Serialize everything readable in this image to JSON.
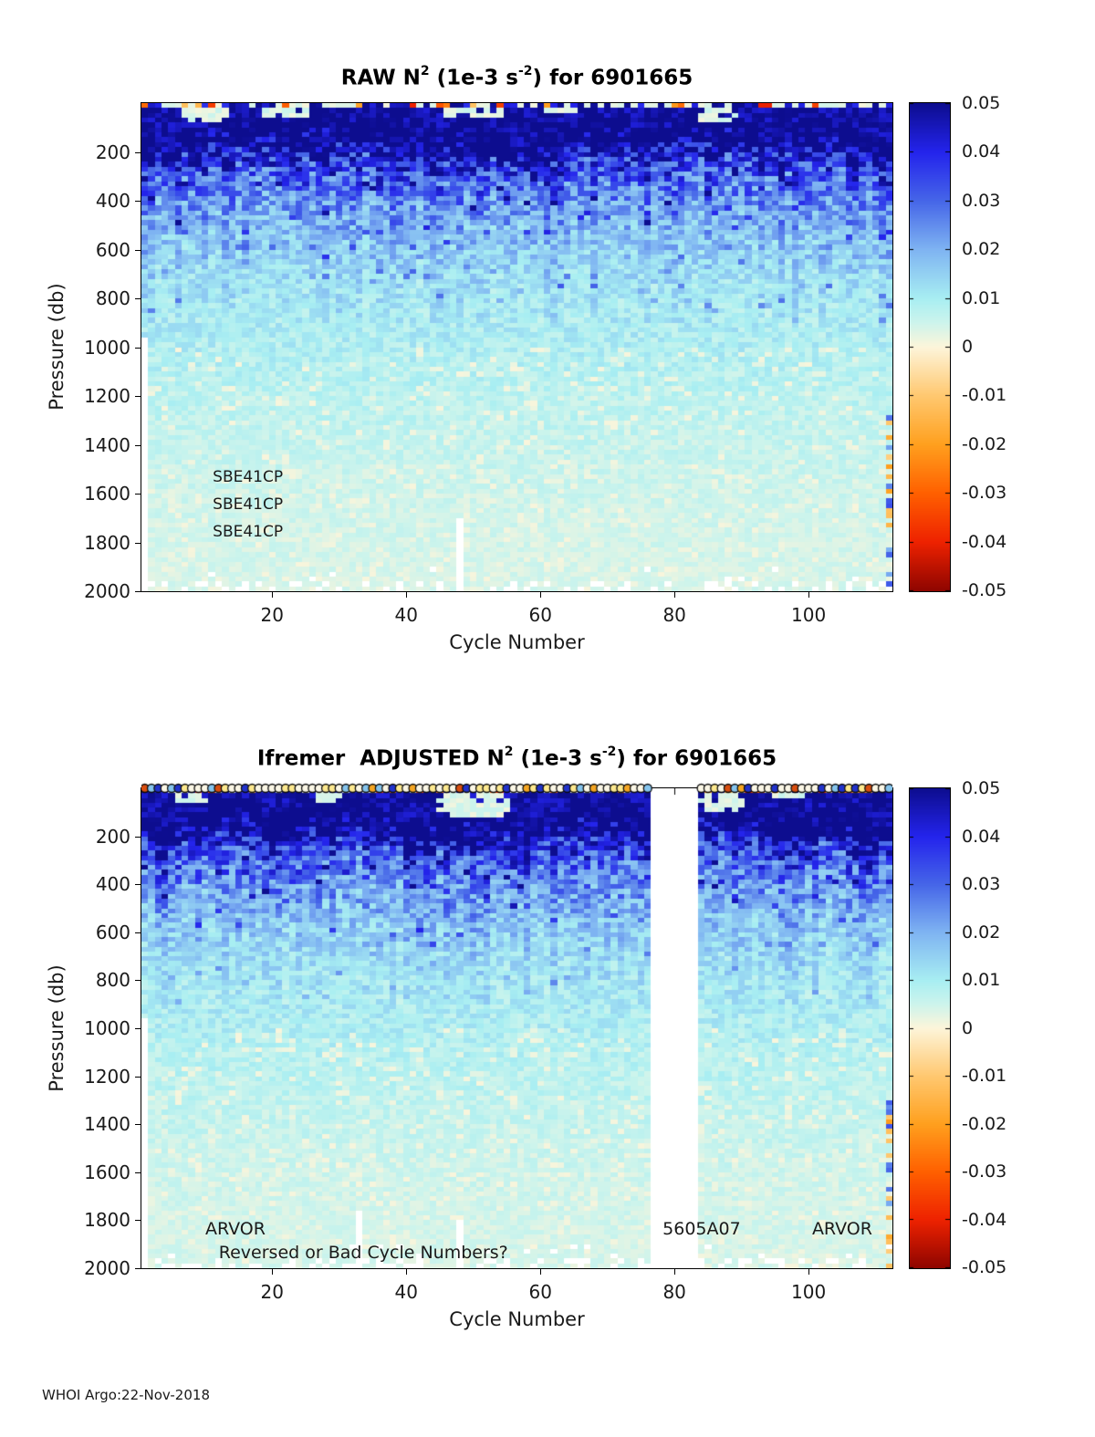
{
  "page": {
    "background": "#ffffff",
    "footer": "WHOI Argo:22-Nov-2018"
  },
  "colormap": {
    "min": -0.05,
    "max": 0.05,
    "stops": [
      [
        -0.05,
        "#8f0500"
      ],
      [
        -0.04,
        "#ee2200"
      ],
      [
        -0.03,
        "#ff6000"
      ],
      [
        -0.02,
        "#ffa01e"
      ],
      [
        -0.01,
        "#ffc870"
      ],
      [
        0.0,
        "#fdf5da"
      ],
      [
        0.005,
        "#cdf4ec"
      ],
      [
        0.01,
        "#a8eef2"
      ],
      [
        0.02,
        "#7fb4f2"
      ],
      [
        0.03,
        "#4666e8"
      ],
      [
        0.04,
        "#2424ec"
      ],
      [
        0.05,
        "#0d0d8f"
      ]
    ]
  },
  "chart_data": [
    {
      "type": "heatmap",
      "title_parts": {
        "t1": "RAW N",
        "sup1": "2",
        "t2": " (1e-3 s",
        "sup2": "-2",
        "t3": ") for 6901665"
      },
      "xlabel": "Cycle Number",
      "ylabel": "Pressure (db)",
      "x_range": [
        1,
        112
      ],
      "y_range": [
        0,
        2000
      ],
      "x_ticks": [
        20,
        40,
        60,
        80,
        100
      ],
      "y_ticks": [
        200,
        400,
        600,
        800,
        1000,
        1200,
        1400,
        1600,
        1800,
        2000
      ],
      "colorbar_ticks": [
        "0.05",
        "0.04",
        "0.03",
        "0.02",
        "0.01",
        "0",
        "-0.01",
        "-0.02",
        "-0.03",
        "-0.04",
        "-0.05"
      ],
      "annotations": [
        {
          "text": "SBE41CP",
          "fx": 0.095,
          "fy": 0.766
        },
        {
          "text": "SBE41CP",
          "fx": 0.095,
          "fy": 0.822
        },
        {
          "text": "SBE41CP",
          "fx": 0.095,
          "fy": 0.879
        }
      ],
      "profile_db_value": [
        [
          0,
          0.01
        ],
        [
          20,
          0.04
        ],
        [
          40,
          0.048
        ],
        [
          80,
          0.047
        ],
        [
          120,
          0.044
        ],
        [
          160,
          0.04
        ],
        [
          200,
          0.036
        ],
        [
          250,
          0.031
        ],
        [
          300,
          0.027
        ],
        [
          350,
          0.025
        ],
        [
          400,
          0.023
        ],
        [
          500,
          0.019
        ],
        [
          600,
          0.016
        ],
        [
          700,
          0.0135
        ],
        [
          800,
          0.0115
        ],
        [
          900,
          0.01
        ],
        [
          1000,
          0.009
        ],
        [
          1100,
          0.008
        ],
        [
          1200,
          0.0072
        ],
        [
          1400,
          0.006
        ],
        [
          1600,
          0.005
        ],
        [
          1800,
          0.0044
        ],
        [
          2000,
          0.004
        ]
      ],
      "pale_blobs": [
        {
          "c": 10,
          "d": 45,
          "rc": 4,
          "rd": 35
        },
        {
          "c": 22,
          "d": 35,
          "rc": 4,
          "rd": 25
        },
        {
          "c": 50,
          "d": 40,
          "rc": 5,
          "rd": 30
        },
        {
          "c": 63,
          "d": 30,
          "rc": 3,
          "rd": 20
        },
        {
          "c": 86,
          "d": 50,
          "rc": 4,
          "rd": 30
        }
      ],
      "features": {
        "gap_cycles": null,
        "marker_row": false,
        "left_column_missing_below_db": 950,
        "missing_columns": [
          [
            48,
            1700
          ]
        ],
        "right_edge_specks_below_db": 1250
      }
    },
    {
      "type": "heatmap",
      "title_parts": {
        "t1": "Ifremer  ADJUSTED N",
        "sup1": "2",
        "t2": " (1e-3 s",
        "sup2": "-2",
        "t3": ") for 6901665"
      },
      "xlabel": "Cycle Number",
      "ylabel": "Pressure (db)",
      "x_range": [
        1,
        112
      ],
      "y_range": [
        0,
        2000
      ],
      "x_ticks": [
        20,
        40,
        60,
        80,
        100
      ],
      "y_ticks": [
        200,
        400,
        600,
        800,
        1000,
        1200,
        1400,
        1600,
        1800,
        2000
      ],
      "colorbar_ticks": [
        "0.05",
        "0.04",
        "0.03",
        "0.02",
        "0.01",
        "0",
        "-0.01",
        "-0.02",
        "-0.03",
        "-0.04",
        "-0.05"
      ],
      "annotations": [
        {
          "text": "ARVOR",
          "fx": 0.085,
          "fy": 0.918
        },
        {
          "text": "Reversed or Bad Cycle Numbers?",
          "fx": 0.103,
          "fy": 0.968
        },
        {
          "text": "5605A07",
          "fx": 0.694,
          "fy": 0.918
        },
        {
          "text": "ARVOR",
          "fx": 0.893,
          "fy": 0.918
        }
      ],
      "profile_db_value": [
        [
          0,
          0.01
        ],
        [
          20,
          0.04
        ],
        [
          40,
          0.048
        ],
        [
          80,
          0.047
        ],
        [
          120,
          0.044
        ],
        [
          160,
          0.04
        ],
        [
          200,
          0.036
        ],
        [
          250,
          0.031
        ],
        [
          300,
          0.027
        ],
        [
          350,
          0.025
        ],
        [
          400,
          0.023
        ],
        [
          500,
          0.019
        ],
        [
          600,
          0.016
        ],
        [
          700,
          0.0135
        ],
        [
          800,
          0.0115
        ],
        [
          900,
          0.01
        ],
        [
          1000,
          0.009
        ],
        [
          1100,
          0.008
        ],
        [
          1200,
          0.0072
        ],
        [
          1400,
          0.006
        ],
        [
          1600,
          0.005
        ],
        [
          1800,
          0.0044
        ],
        [
          2000,
          0.004
        ]
      ],
      "pale_blobs": [
        {
          "c": 8,
          "d": 40,
          "rc": 3,
          "rd": 25
        },
        {
          "c": 28,
          "d": 35,
          "rc": 3,
          "rd": 20
        },
        {
          "c": 50,
          "d": 70,
          "rc": 6,
          "rd": 60
        },
        {
          "c": 87,
          "d": 60,
          "rc": 4,
          "rd": 45
        },
        {
          "c": 97,
          "d": 30,
          "rc": 3,
          "rd": 20
        }
      ],
      "features": {
        "gap_cycles": [
          77,
          83
        ],
        "marker_row": true,
        "left_column_missing_below_db": 950,
        "missing_columns": [
          [
            33,
            1750
          ],
          [
            48,
            1800
          ]
        ],
        "right_edge_specks_below_db": 1250
      }
    }
  ]
}
